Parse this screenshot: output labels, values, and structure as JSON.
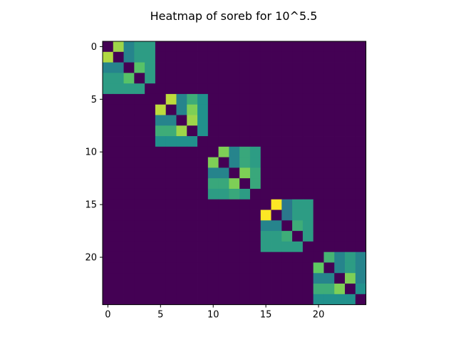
{
  "chart_data": {
    "type": "heatmap",
    "title": "Heatmap of soreb for 10^5.5",
    "xlabel": "",
    "ylabel": "",
    "rows": 25,
    "cols": 25,
    "colormap": "viridis",
    "vmin": 0,
    "vmax": 1,
    "xticks": [
      0,
      5,
      10,
      15,
      20
    ],
    "yticks": [
      0,
      5,
      10,
      15,
      20
    ],
    "grid": false,
    "blocks": [
      {
        "start": 0,
        "values": [
          [
            0.0,
            0.85,
            0.45,
            0.55,
            0.55
          ],
          [
            0.88,
            0.0,
            0.45,
            0.55,
            0.55
          ],
          [
            0.45,
            0.45,
            0.0,
            0.72,
            0.55
          ],
          [
            0.55,
            0.55,
            0.72,
            0.0,
            0.55
          ],
          [
            0.55,
            0.55,
            0.55,
            0.55,
            0.0
          ]
        ]
      },
      {
        "start": 5,
        "values": [
          [
            0.0,
            0.9,
            0.45,
            0.62,
            0.5
          ],
          [
            0.9,
            0.0,
            0.45,
            0.8,
            0.5
          ],
          [
            0.45,
            0.45,
            0.0,
            0.85,
            0.5
          ],
          [
            0.62,
            0.62,
            0.85,
            0.0,
            0.5
          ],
          [
            0.5,
            0.5,
            0.5,
            0.5,
            0.0
          ]
        ]
      },
      {
        "start": 10,
        "values": [
          [
            0.0,
            0.8,
            0.45,
            0.6,
            0.55
          ],
          [
            0.8,
            0.0,
            0.45,
            0.6,
            0.55
          ],
          [
            0.45,
            0.45,
            0.0,
            0.8,
            0.6
          ],
          [
            0.6,
            0.6,
            0.8,
            0.0,
            0.6
          ],
          [
            0.55,
            0.55,
            0.6,
            0.55,
            0.0
          ]
        ]
      },
      {
        "start": 15,
        "values": [
          [
            0.0,
            1.0,
            0.4,
            0.55,
            0.55
          ],
          [
            1.0,
            0.0,
            0.4,
            0.55,
            0.55
          ],
          [
            0.45,
            0.45,
            0.0,
            0.62,
            0.55
          ],
          [
            0.55,
            0.55,
            0.62,
            0.0,
            0.55
          ],
          [
            0.55,
            0.55,
            0.55,
            0.55,
            0.0
          ]
        ]
      },
      {
        "start": 20,
        "values": [
          [
            0.0,
            0.65,
            0.45,
            0.55,
            0.45
          ],
          [
            0.75,
            0.0,
            0.45,
            0.55,
            0.45
          ],
          [
            0.45,
            0.45,
            0.0,
            0.8,
            0.45
          ],
          [
            0.62,
            0.62,
            0.8,
            0.0,
            0.5
          ],
          [
            0.5,
            0.5,
            0.5,
            0.5,
            0.0
          ]
        ]
      }
    ]
  }
}
